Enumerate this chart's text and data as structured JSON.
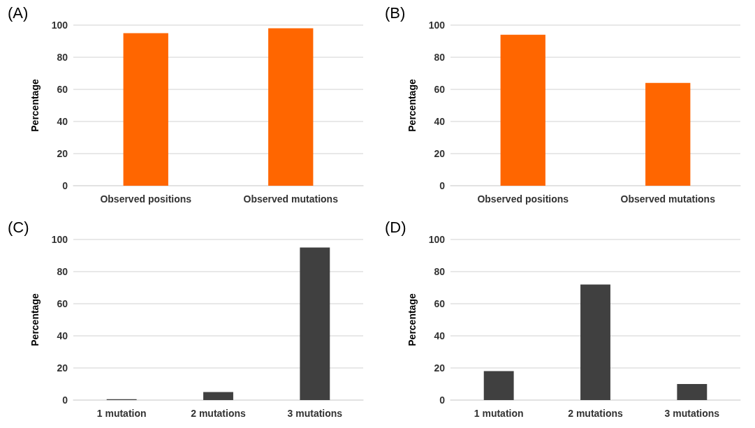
{
  "chart_data": [
    {
      "type": "bar",
      "title": "(A)",
      "ylabel": "Percentage",
      "categories": [
        "Observed positions",
        "Observed mutations"
      ],
      "values": [
        95,
        98
      ],
      "color": "#ff6600",
      "ylim": [
        0,
        100
      ],
      "yticks": [
        0,
        20,
        40,
        60,
        80,
        100
      ],
      "grid": "y"
    },
    {
      "type": "bar",
      "title": "(B)",
      "ylabel": "Percentage",
      "categories": [
        "Observed positions",
        "Observed mutations"
      ],
      "values": [
        94,
        64
      ],
      "color": "#ff6600",
      "ylim": [
        0,
        100
      ],
      "yticks": [
        0,
        20,
        40,
        60,
        80,
        100
      ],
      "grid": "y"
    },
    {
      "type": "bar",
      "title": "(C)",
      "ylabel": "Percentage",
      "categories": [
        "1 mutation",
        "2 mutations",
        "3 mutations"
      ],
      "values": [
        0.5,
        5,
        95
      ],
      "color": "#404040",
      "ylim": [
        0,
        100
      ],
      "yticks": [
        0,
        20,
        40,
        60,
        80,
        100
      ],
      "grid": "y"
    },
    {
      "type": "bar",
      "title": "(D)",
      "ylabel": "Percentage",
      "categories": [
        "1 mutation",
        "2 mutations",
        "3 mutations"
      ],
      "values": [
        18,
        72,
        10
      ],
      "color": "#404040",
      "ylim": [
        0,
        100
      ],
      "yticks": [
        0,
        20,
        40,
        60,
        80,
        100
      ],
      "grid": "y"
    }
  ]
}
